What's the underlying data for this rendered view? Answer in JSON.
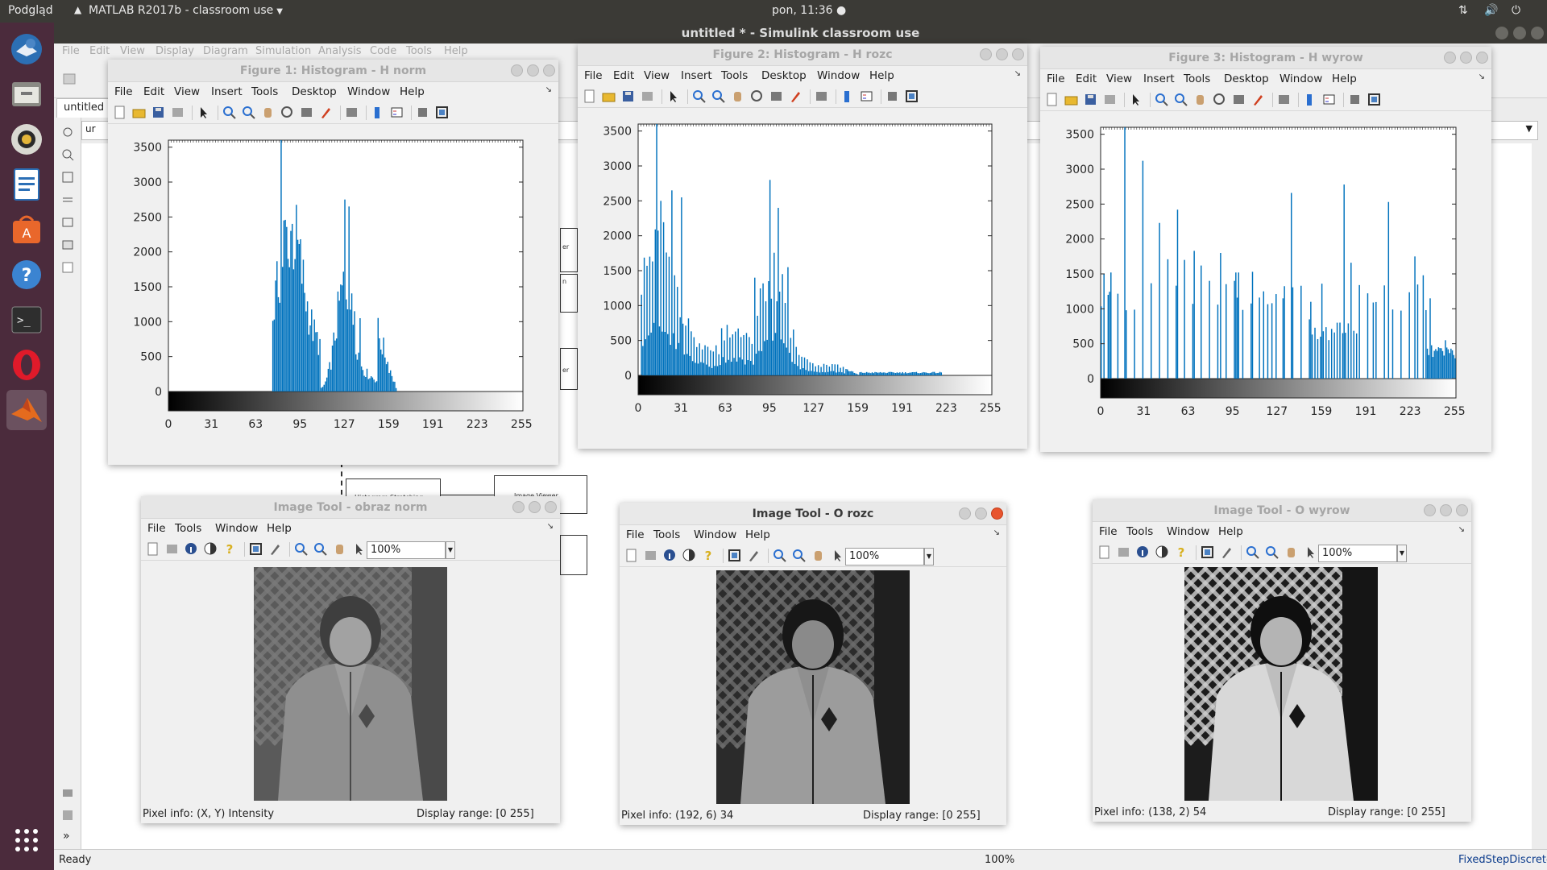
{
  "topbar": {
    "app": "Podgląd",
    "active_window": "MATLAB R2017b - classroom use",
    "clock": "pon, 11:36"
  },
  "launcher": {
    "items": [
      "thunderbird-icon",
      "files-icon",
      "rhythmbox-icon",
      "writer-icon",
      "software-center-icon",
      "help-icon",
      "terminal-icon",
      "opera-icon",
      "matlab-icon",
      "show-apps-icon"
    ]
  },
  "simulink": {
    "title": "untitled * - Simulink classroom use",
    "menu": [
      "File",
      "Edit",
      "View",
      "Display",
      "Diagram",
      "Simulation",
      "Analysis",
      "Code",
      "Tools",
      "Help"
    ],
    "tab": "untitled",
    "address_prefix": "ur",
    "status_left": "Ready",
    "status_zoom": "100%",
    "status_solver": "FixedStepDiscrete",
    "blocks": [
      "Histogram Stretching",
      "Image Viewer"
    ],
    "partial_labels": [
      "er",
      "n",
      "er"
    ]
  },
  "figure_menu": [
    "File",
    "Edit",
    "View",
    "Insert",
    "Tools",
    "Desktop",
    "Window",
    "Help"
  ],
  "imtool_menu": [
    "File",
    "Tools",
    "Window",
    "Help"
  ],
  "figures": [
    {
      "title": "Figure 1: Histogram - H norm",
      "chart_data": {
        "type": "bar",
        "xlim": [
          0,
          255
        ],
        "ylim": [
          0,
          3600
        ],
        "xticks": [
          0,
          31,
          63,
          95,
          127,
          159,
          191,
          223,
          255
        ],
        "yticks": [
          0,
          500,
          1000,
          1500,
          2000,
          2500,
          3000,
          3500
        ],
        "colorbar": "grayscale",
        "bar_color": "#0072BD",
        "mode": "norm"
      }
    },
    {
      "title": "Figure 2: Histogram - H rozc",
      "chart_data": {
        "type": "bar",
        "xlim": [
          0,
          255
        ],
        "ylim": [
          0,
          3600
        ],
        "xticks": [
          0,
          31,
          63,
          95,
          127,
          159,
          191,
          223,
          255
        ],
        "yticks": [
          0,
          500,
          1000,
          1500,
          2000,
          2500,
          3000,
          3500
        ],
        "colorbar": "grayscale",
        "bar_color": "#0072BD",
        "mode": "rozc"
      }
    },
    {
      "title": "Figure 3: Histogram - H wyrow",
      "chart_data": {
        "type": "bar",
        "xlim": [
          0,
          255
        ],
        "ylim": [
          0,
          3600
        ],
        "xticks": [
          0,
          31,
          63,
          95,
          127,
          159,
          191,
          223,
          255
        ],
        "yticks": [
          0,
          500,
          1000,
          1500,
          2000,
          2500,
          3000,
          3500
        ],
        "colorbar": "grayscale",
        "bar_color": "#0072BD",
        "mode": "wyrow"
      }
    }
  ],
  "imtools": [
    {
      "title": "Image Tool - obraz norm",
      "zoom": "100%",
      "pixel_info": "Pixel info: (X, Y)  Intensity",
      "display_range": "Display range: [0 255]"
    },
    {
      "title": "Image Tool - O rozc",
      "zoom": "100%",
      "pixel_info": "Pixel info: (192, 6)  34",
      "display_range": "Display range: [0 255]"
    },
    {
      "title": "Image Tool - O wyrow",
      "zoom": "100%",
      "pixel_info": "Pixel info: (138, 2)  54",
      "display_range": "Display range: [0 255]"
    }
  ]
}
